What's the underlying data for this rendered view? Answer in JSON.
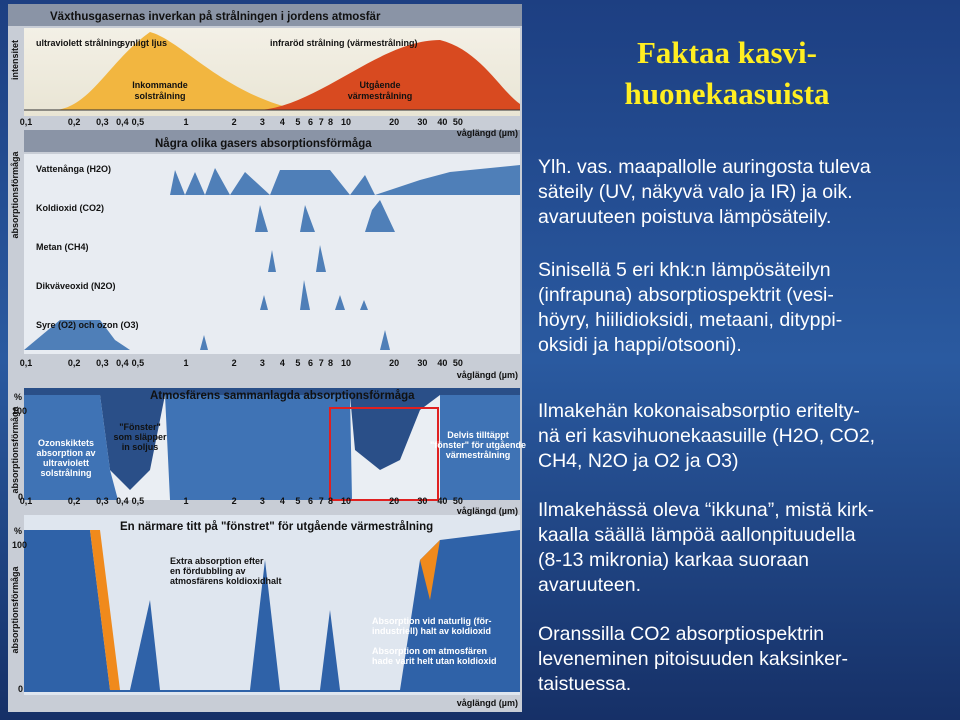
{
  "slide": {
    "title": [
      "Faktaa kasvi-",
      "huonekaasuista"
    ],
    "paragraphs": [
      [
        "Ylh. vas. maapallolle auringosta tuleva",
        "säteily (UV, näkyvä valo ja IR) ja oik.",
        "avaruuteen poistuva lämpösäteily."
      ],
      [
        "Sinisellä 5 eri khk:n lämpösäteilyn",
        "(infrapuna) absorptiospektrit (vesi-",
        "höyry, hiilidioksidi, metaani, dityppi-",
        "oksidi ja happi/otsooni)."
      ],
      [
        "Ilmakehän kokonaisabsorptio eritelty-",
        "nä eri kasvihuonekaasuille (H2O, CO2,",
        "CH4, N2O ja O2 ja O3)"
      ],
      [
        "Ilmakehässä oleva “ikkuna”, mistä kirk-",
        "kaalla säällä lämpöä aallonpituudella",
        "(8-13 mikronia) karkaa suoraan",
        "avaruuteen."
      ],
      [
        "Oranssilla CO2 absorptiospektrin",
        "leveneminen pitoisuuden kaksinker-",
        "taistuessa."
      ]
    ]
  },
  "figure": {
    "wavelength_ticks": [
      "0,1",
      "0,2",
      "0,3",
      "0,4",
      "0,5",
      "1",
      "2",
      "3",
      "4",
      "5",
      "6",
      "7",
      "8",
      "10",
      "20",
      "30",
      "40",
      "50"
    ],
    "wavelength_label": "våglängd (µm)",
    "panel1": {
      "title": "Växthusgasernas inverkan på strålningen i jordens atmosfär",
      "y_label": "intensitet",
      "bands": [
        "ultraviolett strålning",
        "synligt ljus",
        "infraröd strålning (värmestrålning)"
      ],
      "incoming": [
        "Inkommande",
        "solstrålning"
      ],
      "outgoing": [
        "Utgående",
        "värmestrålning"
      ]
    },
    "panel2": {
      "title": "Några olika gasers absorptionsförmåga",
      "y_label": "absorptionsförmåga",
      "gases": [
        "Vattenånga (H2O)",
        "Koldioxid (CO2)",
        "Metan (CH4)",
        "Dikväveoxid (N2O)",
        "Syre (O2) och ozon (O3)"
      ]
    },
    "panel3": {
      "title": "Atmosfärens sammanlagda absorptionsförmåga",
      "y_label": "absorptionsförmåga",
      "unit": "%",
      "top": "100",
      "bottom": "0",
      "ozone": [
        "Ozonskiktets",
        "absorption av",
        "ultraviolett",
        "solstrålning"
      ],
      "window": [
        "\"Fönster\"",
        "som släpper",
        "in soljus"
      ],
      "partial": [
        "Delvis tilltäppt",
        "\"fönster\" för utgående",
        "värmestrålning"
      ]
    },
    "panel4": {
      "title": "En närmare titt på \"fönstret\" för utgående värmestrålning",
      "y_label": "absorptionsförmåga",
      "unit": "%",
      "top": "100",
      "bottom": "0",
      "extra": [
        "Extra absorption efter",
        "en fördubbling av",
        "atmosfärens koldioxidhalt"
      ],
      "natural": [
        "Absorption vid naturlig (för-",
        "industriell) halt av koldioxid"
      ],
      "without": [
        "Absorption om atmosfären",
        "hade varit helt utan koldioxid"
      ]
    }
  }
}
